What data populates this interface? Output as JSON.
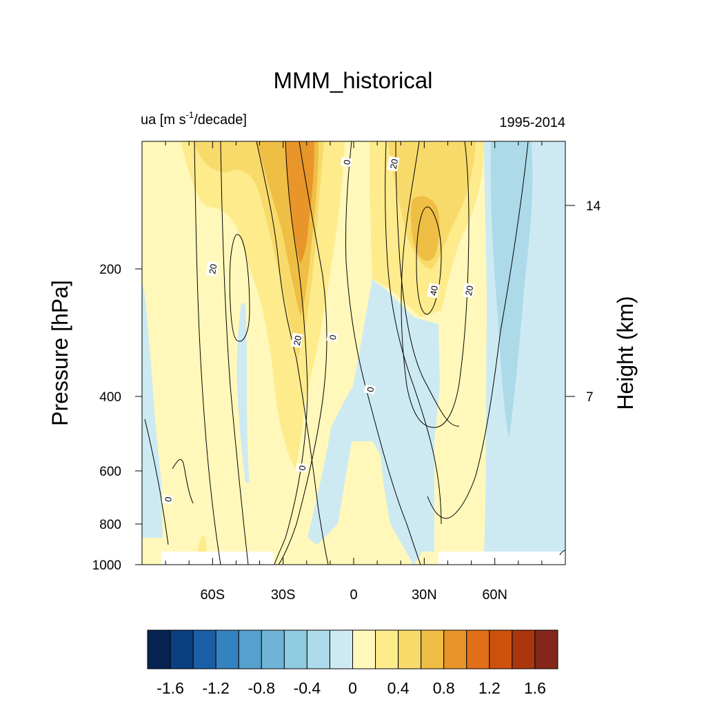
{
  "chart_data": {
    "type": "contour",
    "title": "MMM_historical",
    "subtitle_left": "ua [m s",
    "subtitle_left_sup": "-1",
    "subtitle_left_rest": "/decade]",
    "subtitle_right": "1995-2014",
    "ylabel": "Pressure [hPa]",
    "ylabel_right": "Height (km)",
    "xlabel": "",
    "x_domain": [
      -90,
      90
    ],
    "y_domain_hpa": [
      1000,
      100
    ],
    "x_ticks": [
      {
        "value": -60,
        "label": "60S"
      },
      {
        "value": -30,
        "label": "30S"
      },
      {
        "value": 0,
        "label": "0"
      },
      {
        "value": 30,
        "label": "30N"
      },
      {
        "value": 60,
        "label": "60N"
      }
    ],
    "y_ticks": [
      {
        "value": 200,
        "label": "200"
      },
      {
        "value": 400,
        "label": "400"
      },
      {
        "value": 600,
        "label": "600"
      },
      {
        "value": 800,
        "label": "800"
      },
      {
        "value": 1000,
        "label": "1000"
      }
    ],
    "y_ticks_right": [
      {
        "value": 14,
        "label": "14"
      },
      {
        "value": 7,
        "label": "7"
      }
    ],
    "colorbar": {
      "levels": [
        -1.8,
        -1.6,
        -1.4,
        -1.2,
        -1.0,
        -0.8,
        -0.6,
        -0.4,
        -0.2,
        0,
        0.2,
        0.4,
        0.6,
        0.8,
        1.0,
        1.2,
        1.4,
        1.6,
        1.8
      ],
      "tick_labels": [
        "-1.6",
        "-1.2",
        "-0.8",
        "-0.4",
        "0",
        "0.4",
        "0.8",
        "1.2",
        "1.6"
      ],
      "colors": [
        "#08234f",
        "#0a3f80",
        "#1a5ea6",
        "#3582c0",
        "#55a0cd",
        "#6fb4d6",
        "#8ecae0",
        "#acdae8",
        "#cdeaf3",
        "#fff8ba",
        "#feeb8c",
        "#f8da6b",
        "#efbe45",
        "#e89629",
        "#e16f17",
        "#cc520c",
        "#aa3610",
        "#84261a"
      ]
    },
    "shading_anomaly_levels": [
      {
        "label": "0 to 0.2",
        "color_index": 9
      },
      {
        "label": "0.2 to 0.4",
        "color_index": 10
      },
      {
        "label": "0.4 to 0.6",
        "color_index": 11
      },
      {
        "label": "0.6 to 0.8",
        "color_index": 12
      },
      {
        "label": "0.8 to 1.0",
        "color_index": 13
      },
      {
        "label": "-0.2 to 0",
        "color_index": 8
      },
      {
        "label": "-0.4 to -0.2",
        "color_index": 7
      }
    ],
    "climatology_contour_labels": [
      {
        "text": "20",
        "lat": -60,
        "p": 200
      },
      {
        "text": "20",
        "lat": -24,
        "p": 295
      },
      {
        "text": "0",
        "lat": -9,
        "p": 290
      },
      {
        "text": "0",
        "lat": -3,
        "p": 112
      },
      {
        "text": "20",
        "lat": 17,
        "p": 113
      },
      {
        "text": "40",
        "lat": 34,
        "p": 225
      },
      {
        "text": "20",
        "lat": 49,
        "p": 225
      },
      {
        "text": "0",
        "lat": 7,
        "p": 385
      },
      {
        "text": "0",
        "lat": -22,
        "p": 590
      },
      {
        "text": "0",
        "lat": -79,
        "p": 700
      }
    ]
  }
}
